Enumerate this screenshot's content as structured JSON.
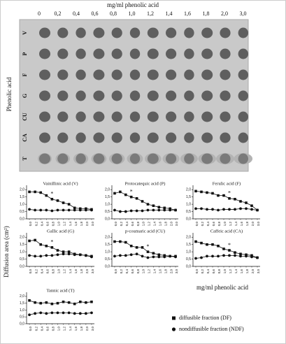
{
  "photo": {
    "title": "mg/ml phenolic acid",
    "columns": [
      "0",
      "0,2",
      "0,4",
      "0,6",
      "0,8",
      "1,0",
      "1,2",
      "1,4",
      "1,6",
      "1,8",
      "2,0",
      "3,0"
    ],
    "rows": [
      "V",
      "P",
      "F",
      "G",
      "CU",
      "CA",
      "T"
    ],
    "ylabel": "Phenolic acid"
  },
  "figure": {
    "ylabel": "Diffusion area (cm²)",
    "xlabel": "mg/ml phenolic acid"
  },
  "chart_data": [
    {
      "type": "line",
      "title": "Vainillinic acid (V)",
      "categories": [
        "0,0",
        "0,2",
        "0,4",
        "0,6",
        "0,8",
        "1,0",
        "1,2",
        "1,4",
        "1,6",
        "1,8",
        "2,0",
        "3,0"
      ],
      "series": [
        {
          "name": "diffusible fraction (DF)",
          "marker": "square",
          "color": "#111111",
          "values": [
            1.85,
            1.85,
            1.8,
            1.6,
            1.35,
            1.25,
            1.1,
            1.0,
            0.75,
            0.7,
            0.7,
            0.65
          ]
        },
        {
          "name": "nondiffusible fraction (NDF)",
          "marker": "circle",
          "color": "#111111",
          "values": [
            0.65,
            0.6,
            0.6,
            0.6,
            0.55,
            0.6,
            0.6,
            0.6,
            0.6,
            0.6,
            0.6,
            0.6
          ]
        }
      ],
      "annotations": [
        {
          "text": "*",
          "index": 4
        }
      ],
      "ylim": [
        0,
        2.3
      ],
      "yticks": [
        {
          "value": 0,
          "label": "0,0"
        },
        {
          "value": 0.5,
          "label": "0,5"
        },
        {
          "value": 1,
          "label": "1,0"
        },
        {
          "value": 1.5,
          "label": "1,5"
        },
        {
          "value": 2,
          "label": "2,0"
        }
      ]
    },
    {
      "type": "line",
      "title": "Protocatequic acid (P)",
      "categories": [
        "0,0",
        "0,2",
        "0,4",
        "0,6",
        "0,8",
        "1,0",
        "1,2",
        "1,4",
        "1,6",
        "1,8",
        "2,0",
        "3,0"
      ],
      "series": [
        {
          "marker": "square",
          "color": "#111111",
          "values": [
            1.75,
            1.85,
            1.65,
            1.5,
            1.4,
            1.2,
            1.0,
            0.9,
            0.8,
            0.75,
            0.7,
            0.6
          ]
        },
        {
          "marker": "circle",
          "color": "#111111",
          "values": [
            0.6,
            0.5,
            0.5,
            0.55,
            0.55,
            0.55,
            0.6,
            0.6,
            0.6,
            0.6,
            0.6,
            0.6
          ]
        }
      ],
      "annotations": [
        {
          "text": "*",
          "index": 3
        }
      ],
      "ylim": [
        0,
        2.3
      ],
      "yticks": [
        {
          "value": 0,
          "label": "0,0"
        },
        {
          "value": 0.5,
          "label": "0,5"
        },
        {
          "value": 1,
          "label": "1,0"
        },
        {
          "value": 1.5,
          "label": "1,5"
        },
        {
          "value": 2,
          "label": "2,0"
        }
      ]
    },
    {
      "type": "line",
      "title": "Ferulic acid (F)",
      "categories": [
        "0,0",
        "0,2",
        "0,4",
        "0,6",
        "0,8",
        "1,0",
        "1,2",
        "1,4",
        "1,6",
        "1,8",
        "2,0",
        "3,0"
      ],
      "series": [
        {
          "marker": "square",
          "color": "#111111",
          "values": [
            1.9,
            1.85,
            1.8,
            1.75,
            1.6,
            1.6,
            1.4,
            1.35,
            1.2,
            1.1,
            0.9,
            0.6
          ]
        },
        {
          "marker": "circle",
          "color": "#111111",
          "values": [
            0.7,
            0.7,
            0.65,
            0.65,
            0.6,
            0.65,
            0.65,
            0.65,
            0.7,
            0.7,
            0.65,
            0.6
          ]
        }
      ],
      "annotations": [
        {
          "text": "*",
          "index": 6
        }
      ],
      "ylim": [
        0,
        2.3
      ],
      "yticks": [
        {
          "value": 0,
          "label": "0,0"
        },
        {
          "value": 0.5,
          "label": "0,5"
        },
        {
          "value": 1,
          "label": "1,0"
        },
        {
          "value": 1.5,
          "label": "1,5"
        },
        {
          "value": 2,
          "label": "2,0"
        }
      ]
    },
    {
      "type": "line",
      "title": "Gallic acid (G)",
      "categories": [
        "0,0",
        "0,2",
        "0,4",
        "0,6",
        "0,8",
        "1,0",
        "1,2",
        "1,4",
        "1,6",
        "1,8",
        "2,0",
        "3,0"
      ],
      "series": [
        {
          "marker": "square",
          "color": "#111111",
          "values": [
            1.75,
            1.8,
            1.5,
            1.4,
            1.3,
            1.1,
            1.0,
            1.0,
            0.85,
            0.8,
            0.75,
            0.7
          ]
        },
        {
          "marker": "circle",
          "color": "#111111",
          "values": [
            0.75,
            0.7,
            0.7,
            0.75,
            0.75,
            0.8,
            0.85,
            0.85,
            0.8,
            0.8,
            0.75,
            0.65
          ]
        }
      ],
      "annotations": [
        {
          "text": "*",
          "index": 4
        }
      ],
      "ylim": [
        0,
        2.3
      ],
      "yticks": [
        {
          "value": 0,
          "label": "0,0"
        },
        {
          "value": 0.5,
          "label": "0,5"
        },
        {
          "value": 1,
          "label": "1,0"
        },
        {
          "value": 1.5,
          "label": "1,5"
        },
        {
          "value": 2,
          "label": "2,0"
        }
      ]
    },
    {
      "type": "line",
      "title": "p-coumaric acid (CU)",
      "categories": [
        "0,0",
        "0,2",
        "0,4",
        "0,6",
        "0,8",
        "1,0",
        "1,2",
        "1,4",
        "1,6",
        "1,8",
        "2,0",
        "3,0"
      ],
      "series": [
        {
          "marker": "square",
          "color": "#111111",
          "values": [
            1.7,
            1.7,
            1.65,
            1.4,
            1.3,
            1.3,
            1.0,
            0.9,
            0.8,
            0.75,
            0.7,
            0.7
          ]
        },
        {
          "marker": "circle",
          "color": "#111111",
          "values": [
            0.7,
            0.75,
            0.75,
            0.8,
            0.85,
            0.7,
            0.6,
            0.65,
            0.65,
            0.65,
            0.7,
            0.65
          ]
        }
      ],
      "annotations": [
        {
          "text": "*",
          "index": 6
        }
      ],
      "ylim": [
        0,
        2.3
      ],
      "yticks": [
        {
          "value": 0,
          "label": "0,0"
        },
        {
          "value": 0.5,
          "label": "0,5"
        },
        {
          "value": 1,
          "label": "1,0"
        },
        {
          "value": 1.5,
          "label": "1,5"
        },
        {
          "value": 2,
          "label": "2,0"
        }
      ]
    },
    {
      "type": "line",
      "title": "Caffeic acid (CA)",
      "categories": [
        "0,0",
        "0,2",
        "0,4",
        "0,6",
        "0,8",
        "1,0",
        "1,2",
        "1,4",
        "1,6",
        "1,8",
        "2,0",
        "3,0"
      ],
      "series": [
        {
          "marker": "square",
          "color": "#111111",
          "values": [
            1.7,
            1.6,
            1.5,
            1.5,
            1.4,
            1.2,
            1.1,
            0.95,
            0.85,
            0.8,
            0.75,
            0.6
          ]
        },
        {
          "marker": "circle",
          "color": "#111111",
          "values": [
            0.55,
            0.6,
            0.7,
            0.7,
            0.7,
            0.75,
            0.75,
            0.75,
            0.7,
            0.7,
            0.65,
            0.6
          ]
        }
      ],
      "annotations": [
        {
          "text": "*",
          "index": 6
        }
      ],
      "ylim": [
        0,
        2.3
      ],
      "yticks": [
        {
          "value": 0,
          "label": "0,0"
        },
        {
          "value": 0.5,
          "label": "0,5"
        },
        {
          "value": 1,
          "label": "1,0"
        },
        {
          "value": 1.5,
          "label": "1,5"
        },
        {
          "value": 2,
          "label": "2,0"
        }
      ]
    },
    {
      "type": "line",
      "title": "Tannic acid (T)",
      "categories": [
        "0,0",
        "0,2",
        "0,4",
        "0,6",
        "0,8",
        "1,0",
        "1,2",
        "1,4",
        "1,6",
        "1,8",
        "2,0",
        "3,0"
      ],
      "series": [
        {
          "marker": "square",
          "color": "#111111",
          "values": [
            1.7,
            1.55,
            1.5,
            1.55,
            1.45,
            1.5,
            1.6,
            1.55,
            1.45,
            1.6,
            1.55,
            1.6
          ]
        },
        {
          "marker": "circle",
          "color": "#111111",
          "values": [
            0.65,
            0.75,
            0.8,
            0.75,
            0.8,
            0.8,
            0.8,
            0.8,
            0.75,
            0.75,
            0.75,
            0.8
          ]
        }
      ],
      "ylim": [
        0,
        2.3
      ],
      "yticks": [
        {
          "value": 0,
          "label": "0,0"
        },
        {
          "value": 0.5,
          "label": "0,5"
        },
        {
          "value": 1,
          "label": "1,0"
        },
        {
          "value": 1.5,
          "label": "1,5"
        },
        {
          "value": 2,
          "label": "2,0"
        }
      ]
    }
  ]
}
